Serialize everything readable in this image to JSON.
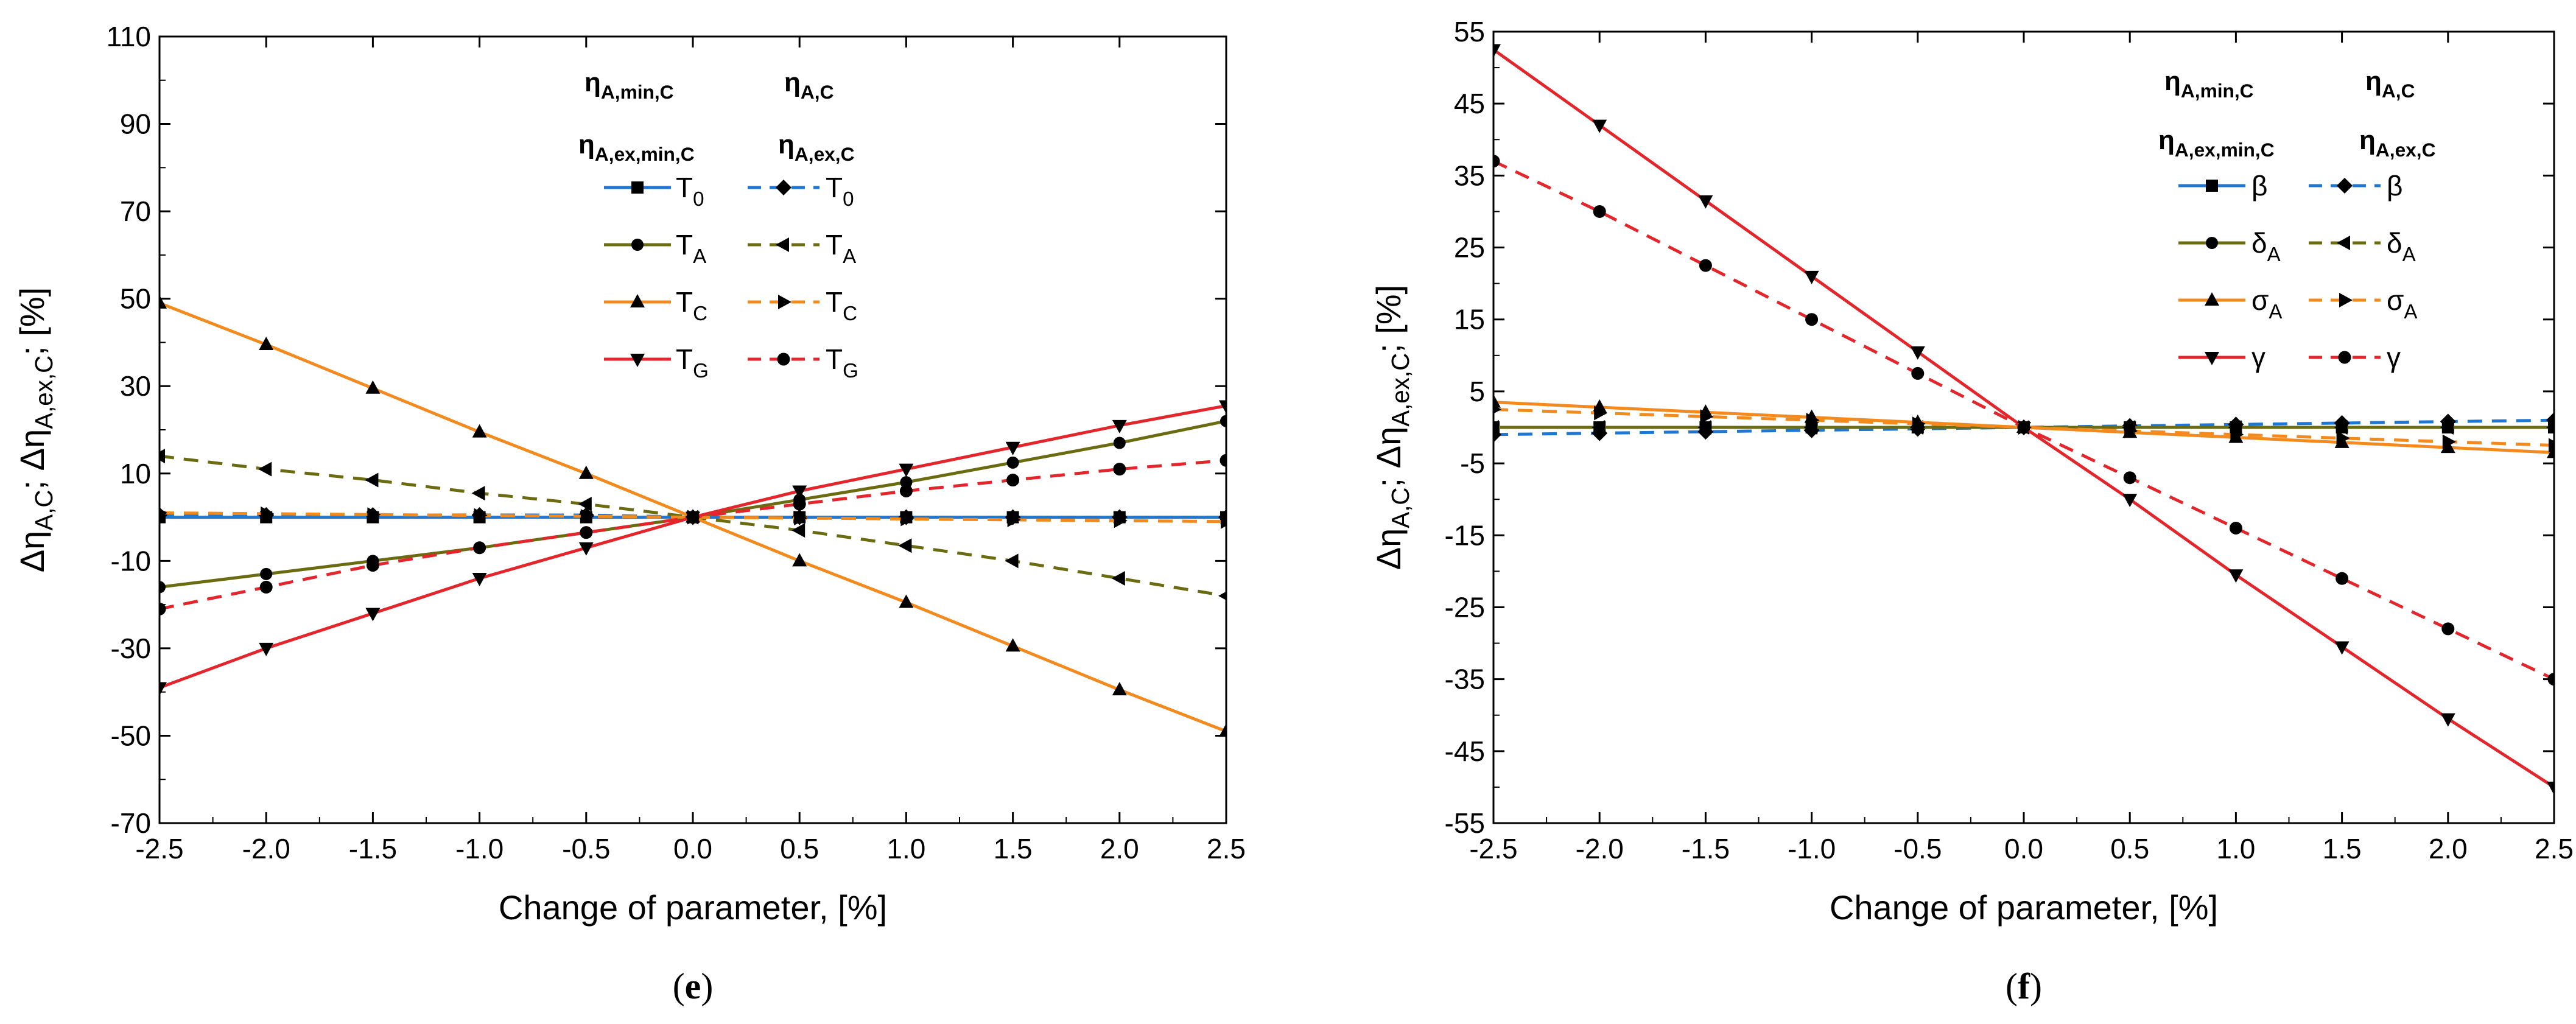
{
  "chart_data": [
    {
      "type": "line",
      "panel_label": "e",
      "xlabel": "Change of parameter, [%]",
      "ylabel": "Δη",
      "ylabel_parts": [
        {
          "base": "Δη",
          "sub": "A,C"
        },
        {
          "base": "; Δη",
          "sub": "A,ex,C"
        },
        {
          "base": "; [%]",
          "sub": ""
        }
      ],
      "xlim": [
        -2.5,
        2.5
      ],
      "ylim": [
        -70,
        110
      ],
      "xticks": [
        "-2.5",
        "-2.0",
        "-1.5",
        "-1.0",
        "-0.5",
        "0.0",
        "0.5",
        "1.0",
        "1.5",
        "2.0",
        "2.5"
      ],
      "yticks": [
        "-70",
        "-50",
        "-30",
        "-10",
        "10",
        "30",
        "50",
        "70",
        "90",
        "110"
      ],
      "legend_position": "top-center",
      "legend_headers": [
        {
          "base": "η",
          "sub": "A,min,C"
        },
        {
          "base": "η",
          "sub": "A,C"
        },
        {
          "base": "η",
          "sub": "A,ex,min,C"
        },
        {
          "base": "η",
          "sub": "A,ex,C"
        }
      ],
      "x": [
        -2.5,
        -2.0,
        -1.5,
        -1.0,
        -0.5,
        0.0,
        0.5,
        1.0,
        1.5,
        2.0,
        2.5
      ],
      "series": [
        {
          "name": "T0 (ηA,min,C)",
          "label": "T",
          "sub": "0",
          "color": "#1f77d4",
          "dash": "solid",
          "marker": "square",
          "values": [
            0,
            0,
            0,
            0,
            0,
            0,
            0,
            0,
            0,
            0,
            0
          ]
        },
        {
          "name": "T0 (ηA,C)",
          "label": "T",
          "sub": "0",
          "color": "#1f77d4",
          "dash": "dashed",
          "marker": "diamond",
          "values": [
            0.5,
            0.5,
            0.5,
            0.5,
            0.5,
            0,
            0,
            0,
            0,
            0,
            0
          ]
        },
        {
          "name": "TA (ηA,min,C)",
          "label": "T",
          "sub": "A",
          "color": "#6b6b12",
          "dash": "solid",
          "marker": "circle",
          "values": [
            -16,
            -13,
            -10,
            -7,
            -3.5,
            0,
            4,
            8,
            12.5,
            17,
            22
          ]
        },
        {
          "name": "TA (ηA,C)",
          "label": "T",
          "sub": "A",
          "color": "#6b6b12",
          "dash": "dashed",
          "marker": "triangle-left",
          "values": [
            14,
            11,
            8.5,
            5.5,
            3,
            0,
            -3,
            -6.5,
            -10,
            -14,
            -18
          ]
        },
        {
          "name": "TC (ηA,min,C)",
          "label": "T",
          "sub": "C",
          "color": "#f28a1e",
          "dash": "solid",
          "marker": "triangle-up",
          "values": [
            49,
            39.5,
            29.5,
            19.5,
            10,
            0,
            -10,
            -19.5,
            -29.5,
            -39.5,
            -49
          ]
        },
        {
          "name": "TC (ηA,C)",
          "label": "T",
          "sub": "C",
          "color": "#f28a1e",
          "dash": "dashed",
          "marker": "triangle-right",
          "values": [
            1,
            0.8,
            0.6,
            0.4,
            0.2,
            0,
            -0.2,
            -0.4,
            -0.6,
            -0.8,
            -1
          ]
        },
        {
          "name": "TG (ηA,min,C)",
          "label": "T",
          "sub": "G",
          "color": "#e3262b",
          "dash": "solid",
          "marker": "triangle-down",
          "values": [
            -39,
            -30,
            -22,
            -14,
            -7,
            0,
            6,
            11,
            16,
            21,
            25.5
          ]
        },
        {
          "name": "TG (ηA,C)",
          "label": "T",
          "sub": "G",
          "color": "#e3262b",
          "dash": "dashed",
          "marker": "hexagon",
          "values": [
            -21,
            -16,
            -11,
            -7,
            -3.5,
            0,
            3,
            6,
            8.5,
            11,
            13
          ]
        }
      ]
    },
    {
      "type": "line",
      "panel_label": "f",
      "xlabel": "Change of parameter, [%]",
      "ylabel": "Δη",
      "ylabel_parts": [
        {
          "base": "Δη",
          "sub": "A,C"
        },
        {
          "base": "; Δη",
          "sub": "A,ex,C"
        },
        {
          "base": "; [%]",
          "sub": ""
        }
      ],
      "xlim": [
        -2.5,
        2.5
      ],
      "ylim": [
        -55,
        55
      ],
      "xticks": [
        "-2.5",
        "-2.0",
        "-1.5",
        "-1.0",
        "-0.5",
        "0.0",
        "0.5",
        "1.0",
        "1.5",
        "2.0",
        "2.5"
      ],
      "yticks": [
        "-55",
        "-45",
        "-35",
        "-25",
        "-15",
        "-5",
        "5",
        "15",
        "25",
        "35",
        "45",
        "55"
      ],
      "legend_position": "top-right",
      "legend_headers": [
        {
          "base": "η",
          "sub": "A,min,C"
        },
        {
          "base": "η",
          "sub": "A,C"
        },
        {
          "base": "η",
          "sub": "A,ex,min,C"
        },
        {
          "base": "η",
          "sub": "A,ex,C"
        }
      ],
      "x": [
        -2.5,
        -2.0,
        -1.5,
        -1.0,
        -0.5,
        0.0,
        0.5,
        1.0,
        1.5,
        2.0,
        2.5
      ],
      "series": [
        {
          "name": "β (ηA,min,C)",
          "label": "β",
          "sub": "",
          "color": "#1f77d4",
          "dash": "solid",
          "marker": "square",
          "values": [
            0,
            0,
            0,
            0,
            0,
            0,
            0,
            0,
            0,
            0,
            0
          ]
        },
        {
          "name": "β (ηA,C)",
          "label": "β",
          "sub": "",
          "color": "#1f77d4",
          "dash": "dashed",
          "marker": "diamond",
          "values": [
            -1,
            -0.8,
            -0.6,
            -0.4,
            -0.2,
            0,
            0.2,
            0.4,
            0.6,
            0.8,
            1
          ]
        },
        {
          "name": "δA (ηA,min,C)",
          "label": "δ",
          "sub": "A",
          "color": "#6b6b12",
          "dash": "solid",
          "marker": "circle",
          "values": [
            0,
            0,
            0,
            0,
            0,
            0,
            0,
            0,
            0,
            0,
            0
          ]
        },
        {
          "name": "δA (ηA,C)",
          "label": "δ",
          "sub": "A",
          "color": "#6b6b12",
          "dash": "dashed",
          "marker": "triangle-left",
          "values": [
            0,
            0,
            0,
            0,
            0,
            0,
            0,
            0,
            0,
            0,
            0
          ]
        },
        {
          "name": "σA (ηA,min,C)",
          "label": "σ",
          "sub": "A",
          "color": "#f28a1e",
          "dash": "solid",
          "marker": "triangle-up",
          "values": [
            3.5,
            2.8,
            2.1,
            1.4,
            0.7,
            0,
            -0.7,
            -1.4,
            -2.1,
            -2.8,
            -3.5
          ]
        },
        {
          "name": "σA (ηA,C)",
          "label": "σ",
          "sub": "A",
          "color": "#f28a1e",
          "dash": "dashed",
          "marker": "triangle-right",
          "values": [
            2.5,
            2,
            1.5,
            1,
            0.5,
            0,
            -0.5,
            -1,
            -1.5,
            -2,
            -2.5
          ]
        },
        {
          "name": "γ (ηA,min,C)",
          "label": "γ",
          "sub": "",
          "color": "#e3262b",
          "dash": "solid",
          "marker": "triangle-down",
          "values": [
            52.5,
            42,
            31.5,
            21,
            10.5,
            0,
            -10,
            -20.5,
            -30.5,
            -40.5,
            -50
          ]
        },
        {
          "name": "γ (ηA,C)",
          "label": "γ",
          "sub": "",
          "color": "#e3262b",
          "dash": "dashed",
          "marker": "hexagon",
          "values": [
            37,
            30,
            22.5,
            15,
            7.5,
            0,
            -7,
            -14,
            -21,
            -28,
            -35
          ]
        }
      ]
    }
  ]
}
